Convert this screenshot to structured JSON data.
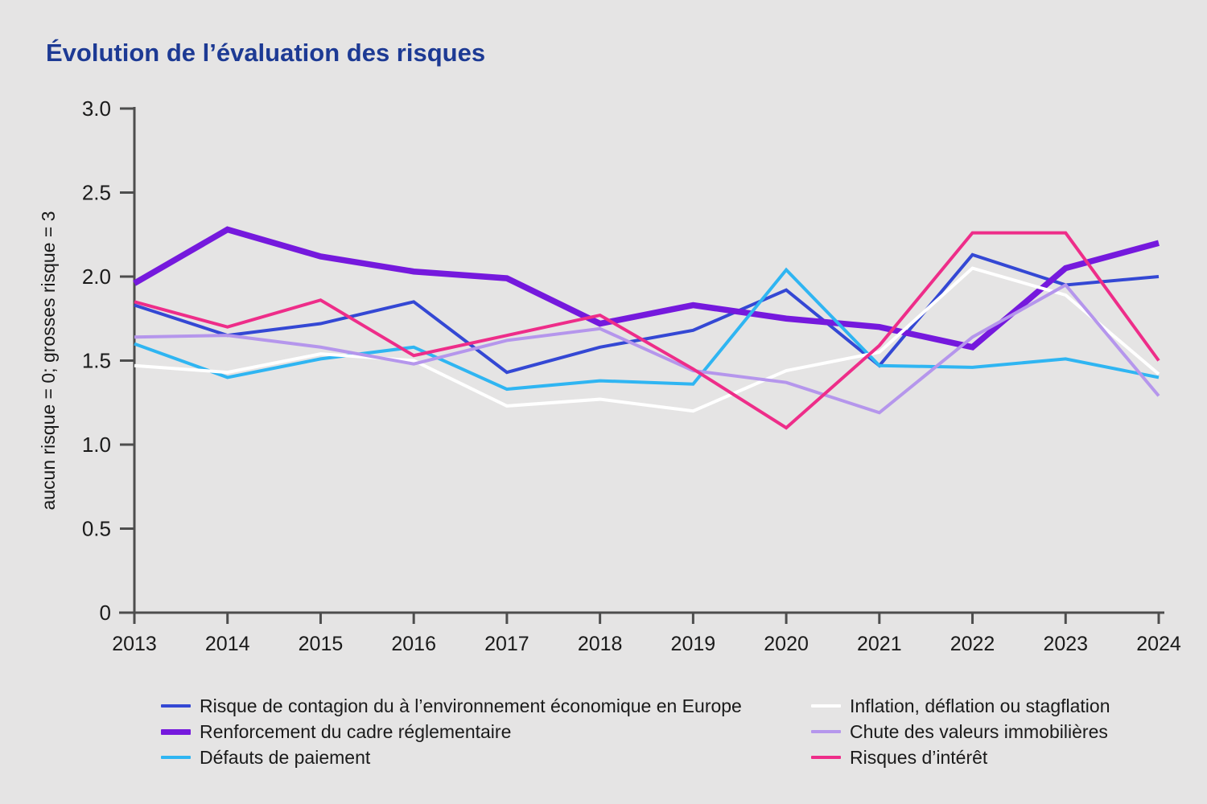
{
  "title": "Évolution de l’évaluation des risques",
  "colors": {
    "background": "#e5e4e4",
    "title_text": "#1d3a94",
    "axis_line": "#4d4d4d",
    "label_text": "#1a1a1a"
  },
  "chart_data": {
    "type": "line",
    "x": [
      "2013",
      "2014",
      "2015",
      "2016",
      "2017",
      "2018",
      "2019",
      "2020",
      "2021",
      "2022",
      "2023",
      "2024"
    ],
    "title": "Évolution de l’évaluation des risques",
    "xlabel": "",
    "ylabel": "aucun risque = 0; grosses risque = 3",
    "ylim": [
      0,
      3
    ],
    "ytick_labels": [
      "0",
      "0.5",
      "1.0",
      "1.5",
      "2.0",
      "2.5",
      "3.0"
    ],
    "yticks": [
      0,
      0.5,
      1.0,
      1.5,
      2.0,
      2.5,
      3.0
    ],
    "grid": false,
    "legend_position": "bottom-two-columns",
    "series": [
      {
        "name": "Risque de contagion du à l’environnement économique en Europe",
        "color": "#3448d4",
        "line_width": 4,
        "values": [
          1.83,
          1.65,
          1.72,
          1.85,
          1.43,
          1.58,
          1.68,
          1.92,
          1.47,
          2.13,
          1.95,
          2.0
        ]
      },
      {
        "name": "Renforcement du cadre réglementaire",
        "color": "#7519dd",
        "line_width": 7.5,
        "values": [
          1.96,
          2.28,
          2.12,
          2.03,
          1.99,
          1.72,
          1.83,
          1.75,
          1.7,
          1.58,
          2.05,
          2.2
        ]
      },
      {
        "name": "Défauts de paiement",
        "color": "#2fb5f2",
        "line_width": 4,
        "values": [
          1.6,
          1.4,
          1.51,
          1.58,
          1.33,
          1.38,
          1.36,
          2.04,
          1.47,
          1.46,
          1.51,
          1.4
        ]
      },
      {
        "name": "Inflation, déflation ou stagflation",
        "color": "#ffffff",
        "line_width": 4,
        "values": [
          1.47,
          1.43,
          1.54,
          1.5,
          1.23,
          1.27,
          1.2,
          1.44,
          1.55,
          2.05,
          1.89,
          1.42
        ]
      },
      {
        "name": "Chute des valeurs immobilières",
        "color": "#b596ec",
        "line_width": 4,
        "values": [
          1.64,
          1.65,
          1.58,
          1.48,
          1.62,
          1.69,
          1.44,
          1.37,
          1.19,
          1.64,
          1.95,
          1.29
        ]
      },
      {
        "name": "Risques d’intérêt",
        "color": "#ee2d89",
        "line_width": 4,
        "values": [
          1.85,
          1.7,
          1.86,
          1.53,
          1.65,
          1.77,
          1.45,
          1.1,
          1.59,
          2.26,
          2.26,
          1.5
        ]
      }
    ]
  },
  "legend": {
    "left_column_series": [
      0,
      1,
      2
    ],
    "right_column_series": [
      3,
      4,
      5
    ]
  }
}
